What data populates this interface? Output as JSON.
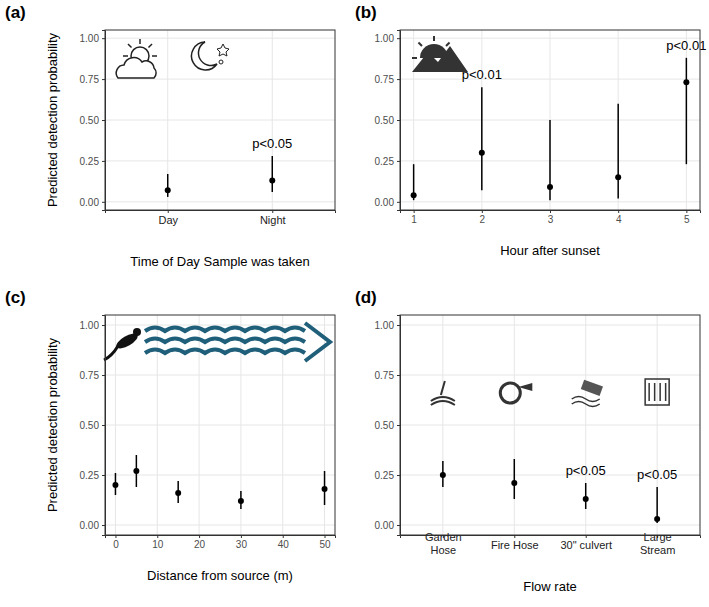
{
  "chart_data": [
    {
      "type": "scatter",
      "title": "(a)",
      "x_label": "Time of Day Sample was taken",
      "y_label": "Predicted detection probability",
      "categories": [
        "Day",
        "Night"
      ],
      "values": [
        0.07,
        0.13
      ],
      "lower": [
        0.03,
        0.06
      ],
      "upper": [
        0.17,
        0.28
      ],
      "ylim": [
        -0.05,
        1.05
      ],
      "yticks": [
        {
          "value": 0,
          "label": "0.00"
        },
        {
          "value": 0.25,
          "label": "0.25"
        },
        {
          "value": 0.5,
          "label": "0.50"
        },
        {
          "value": 0.75,
          "label": "0.75"
        },
        {
          "value": 1,
          "label": "1.00"
        }
      ],
      "grid": true,
      "color": "#000000",
      "annotations": [
        {
          "text": "p<0.05",
          "x": "Night"
        }
      ]
    },
    {
      "type": "scatter",
      "title": "(b)",
      "x_label": "Hour after sunset",
      "x": [
        1,
        2,
        3,
        4,
        5
      ],
      "values": [
        0.04,
        0.3,
        0.09,
        0.15,
        0.73
      ],
      "lower": [
        0.01,
        0.07,
        0.01,
        0.02,
        0.23
      ],
      "upper": [
        0.23,
        0.7,
        0.5,
        0.6,
        0.88
      ],
      "xlim": [
        0.8,
        5.2
      ],
      "xticks": [
        1,
        2,
        3,
        4,
        5
      ],
      "ylim": [
        -0.05,
        1.05
      ],
      "yticks": [
        {
          "value": 0,
          "label": "0.00"
        },
        {
          "value": 0.25,
          "label": "0.25"
        },
        {
          "value": 0.5,
          "label": "0.50"
        },
        {
          "value": 0.75,
          "label": "0.75"
        },
        {
          "value": 1,
          "label": "1.00"
        }
      ],
      "grid": true,
      "color": "#000000",
      "annotations": [
        {
          "text": "p<0.01",
          "x": 2
        },
        {
          "text": "p<0.01",
          "x": 5
        }
      ]
    },
    {
      "type": "scatter",
      "title": "(c)",
      "x_label": "Distance from source (m)",
      "y_label": "Predicted detection probability",
      "x": [
        0,
        5,
        15,
        30,
        50
      ],
      "values": [
        0.2,
        0.27,
        0.16,
        0.12,
        0.18
      ],
      "lower": [
        0.15,
        0.19,
        0.11,
        0.08,
        0.1
      ],
      "upper": [
        0.26,
        0.35,
        0.22,
        0.17,
        0.27
      ],
      "xlim": [
        -2.5,
        52.5
      ],
      "xticks": [
        0,
        10,
        20,
        30,
        40,
        50
      ],
      "ylim": [
        -0.05,
        1.05
      ],
      "yticks": [
        {
          "value": 0,
          "label": "0.00"
        },
        {
          "value": 0.25,
          "label": "0.25"
        },
        {
          "value": 0.5,
          "label": "0.50"
        },
        {
          "value": 0.75,
          "label": "0.75"
        },
        {
          "value": 1,
          "label": "1.00"
        }
      ],
      "grid": true,
      "color": "#000000"
    },
    {
      "type": "scatter",
      "title": "(d)",
      "x_label": "Flow rate",
      "categories": [
        "Garden Hose",
        "Fire Hose",
        "30\" culvert",
        "Large Stream"
      ],
      "values": [
        0.25,
        0.21,
        0.13,
        0.03
      ],
      "lower": [
        0.19,
        0.13,
        0.08,
        0.01
      ],
      "upper": [
        0.32,
        0.33,
        0.21,
        0.19
      ],
      "ylim": [
        -0.05,
        1.05
      ],
      "yticks": [
        {
          "value": 0,
          "label": "0.00"
        },
        {
          "value": 0.25,
          "label": "0.25"
        },
        {
          "value": 0.5,
          "label": "0.50"
        },
        {
          "value": 0.75,
          "label": "0.75"
        },
        {
          "value": 1,
          "label": "1.00"
        }
      ],
      "grid": true,
      "color": "#000000",
      "annotations": [
        {
          "text": "p<0.05",
          "x": "30\" culvert"
        },
        {
          "text": "p<0.05",
          "x": "Large Stream"
        }
      ]
    }
  ]
}
